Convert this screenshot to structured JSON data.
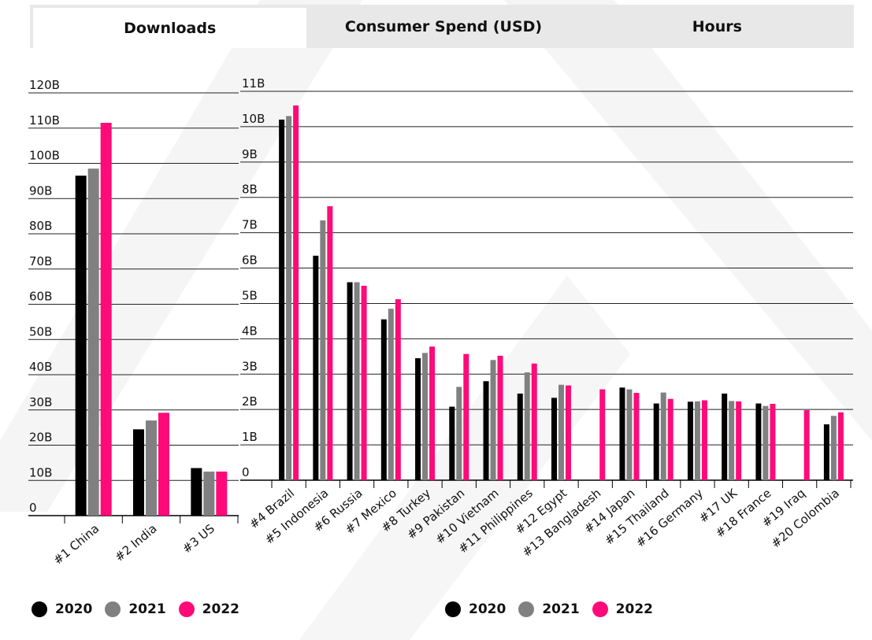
{
  "tabs": [
    {
      "label": "Downloads",
      "active": true
    },
    {
      "label": "Consumer Spend (USD)",
      "active": false
    },
    {
      "label": "Hours",
      "active": false
    }
  ],
  "colors": {
    "2020": "#000000",
    "2021": "#808080",
    "2022": "#ff0a78"
  },
  "chart_data": [
    {
      "type": "bar",
      "categories": [
        "#1 China",
        "#2 India",
        "#3 US"
      ],
      "series": [
        {
          "name": "2020",
          "values": [
            96.5,
            24.5,
            13.5
          ]
        },
        {
          "name": "2021",
          "values": [
            98.5,
            27,
            12.5
          ]
        },
        {
          "name": "2022",
          "values": [
            111.5,
            29.2,
            12.5
          ]
        }
      ],
      "yticks": [
        "0",
        "10B",
        "20B",
        "30B",
        "40B",
        "50B",
        "60B",
        "70B",
        "80B",
        "90B",
        "100B",
        "110B",
        "120B"
      ],
      "ylim": [
        0,
        120
      ],
      "grid": true,
      "legend": "bottom-left"
    },
    {
      "type": "bar",
      "categories": [
        "#4 Brazil",
        "#5 Indonesia",
        "#6 Russia",
        "#7 Mexico",
        "#8 Turkey",
        "#9 Pakistan",
        "#10 Vietnam",
        "#11 Philippines",
        "#12 Egypt",
        "#13 Bangladesh",
        "#14 Japan",
        "#15 Thailand",
        "#16 Germany",
        "#17 UK",
        "#18 France",
        "#19 Iraq",
        "#20 Colombia"
      ],
      "series": [
        {
          "name": "2020",
          "values": [
            10.2,
            6.35,
            5.6,
            4.55,
            3.45,
            2.08,
            2.8,
            2.45,
            2.33,
            0,
            2.62,
            2.17,
            2.22,
            2.45,
            2.17,
            0,
            1.58
          ]
        },
        {
          "name": "2021",
          "values": [
            10.3,
            7.35,
            5.6,
            4.85,
            3.6,
            2.64,
            3.4,
            3.05,
            2.7,
            0,
            2.57,
            2.48,
            2.23,
            2.24,
            2.1,
            0,
            1.82
          ]
        },
        {
          "name": "2022",
          "values": [
            10.6,
            7.75,
            5.5,
            5.12,
            3.78,
            3.57,
            3.52,
            3.3,
            2.68,
            2.57,
            2.47,
            2.3,
            2.26,
            2.23,
            2.16,
            1.98,
            1.92
          ]
        }
      ],
      "yticks": [
        "0",
        "1B",
        "2B",
        "3B",
        "4B",
        "5B",
        "6B",
        "7B",
        "8B",
        "9B",
        "10B",
        "11B"
      ],
      "ylim": [
        0,
        11
      ],
      "grid": true,
      "legend": "bottom-center"
    }
  ],
  "legend_left": [
    {
      "label": "2020",
      "color": "#000000"
    },
    {
      "label": "2021",
      "color": "#808080"
    },
    {
      "label": "2022",
      "color": "#ff0a78"
    }
  ],
  "legend_right": [
    {
      "label": "2020",
      "color": "#000000"
    },
    {
      "label": "2021",
      "color": "#808080"
    },
    {
      "label": "2022",
      "color": "#ff0a78"
    }
  ]
}
